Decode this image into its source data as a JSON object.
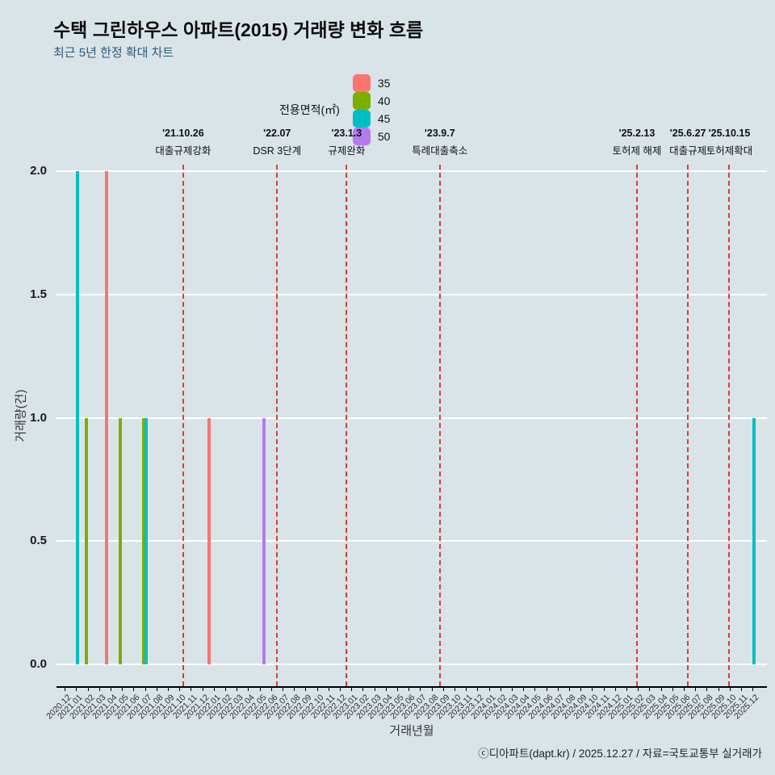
{
  "page": {
    "footer": "ⓒ디아파트(dapt.kr) / 2025.12.27 / 자료=국토교통부 실거래가"
  },
  "chart_data": {
    "type": "bar",
    "title": "수택 그린하우스 아파트(2015) 거래량 변화 흐름",
    "subtitle": "최근 5년 한정 확대 차트",
    "xlabel": "거래년월",
    "ylabel": "거래량(건)",
    "ylim": [
      0,
      2
    ],
    "y_ticks": [
      "0.0",
      "0.5",
      "1.0",
      "1.5",
      "2.0"
    ],
    "grid": "horizontal white gridlines, light blue-gray background",
    "background": "#d9e4e9",
    "event_line_color": "#e23b2e",
    "legend": {
      "title": "전용면적(㎡)",
      "position": "top",
      "items": [
        {
          "label": "35",
          "color": "#f8766d"
        },
        {
          "label": "40",
          "color": "#7cae00"
        },
        {
          "label": "45",
          "color": "#00bfc4"
        },
        {
          "label": "50",
          "color": "#b57bee"
        }
      ]
    },
    "categories": [
      "2020.12",
      "2021.01",
      "2021.02",
      "2021.03",
      "2021.04",
      "2021.05",
      "2021.06",
      "2021.07",
      "2021.08",
      "2021.09",
      "2021.10",
      "2021.11",
      "2021.12",
      "2022.01",
      "2022.02",
      "2022.03",
      "2022.04",
      "2022.05",
      "2022.06",
      "2022.07",
      "2022.08",
      "2022.09",
      "2022.10",
      "2022.11",
      "2022.12",
      "2023.01",
      "2023.02",
      "2023.03",
      "2023.04",
      "2023.05",
      "2023.06",
      "2023.07",
      "2023.08",
      "2023.09",
      "2023.10",
      "2023.11",
      "2023.12",
      "2024.01",
      "2024.02",
      "2024.03",
      "2024.04",
      "2024.05",
      "2024.06",
      "2024.07",
      "2024.08",
      "2024.09",
      "2024.10",
      "2024.11",
      "2024.12",
      "2025.01",
      "2025.02",
      "2025.03",
      "2025.04",
      "2025.05",
      "2025.06",
      "2025.07",
      "2025.08",
      "2025.09",
      "2025.10",
      "2025.11",
      "2025.12"
    ],
    "bars": [
      {
        "month": "2021.01",
        "area": "45",
        "value": 2
      },
      {
        "month": "2021.02",
        "area": "40",
        "value": 1
      },
      {
        "month": "2021.04",
        "area": "35",
        "value": 2
      },
      {
        "month": "2021.05",
        "area": "40",
        "value": 1
      },
      {
        "month": "2021.07",
        "area": "40",
        "value": 1
      },
      {
        "month": "2021.07",
        "area": "45",
        "value": 1
      },
      {
        "month": "2022.01",
        "area": "35",
        "value": 1
      },
      {
        "month": "2022.05",
        "area": "50",
        "value": 1
      },
      {
        "month": "2025.12",
        "area": "45",
        "value": 1
      }
    ],
    "events": [
      {
        "date": "'21.10.26",
        "label": "대출규제강화",
        "month": "2021.10",
        "day": 26
      },
      {
        "date": "'22.07",
        "label": "DSR 3단계",
        "month": "2022.07",
        "day": 1
      },
      {
        "date": "'23.1.3",
        "label": "규제완화",
        "month": "2023.01",
        "day": 3
      },
      {
        "date": "'23.9.7",
        "label": "특례대출축소",
        "month": "2023.09",
        "day": 7
      },
      {
        "date": "'25.2.13",
        "label": "토허제 해제",
        "month": "2025.02",
        "day": 13
      },
      {
        "date": "'25.6.27",
        "label": "대출규제",
        "month": "2025.06",
        "day": 27
      },
      {
        "date": "'25.10.15",
        "label": "토허제확대",
        "month": "2025.10",
        "day": 15
      }
    ]
  }
}
